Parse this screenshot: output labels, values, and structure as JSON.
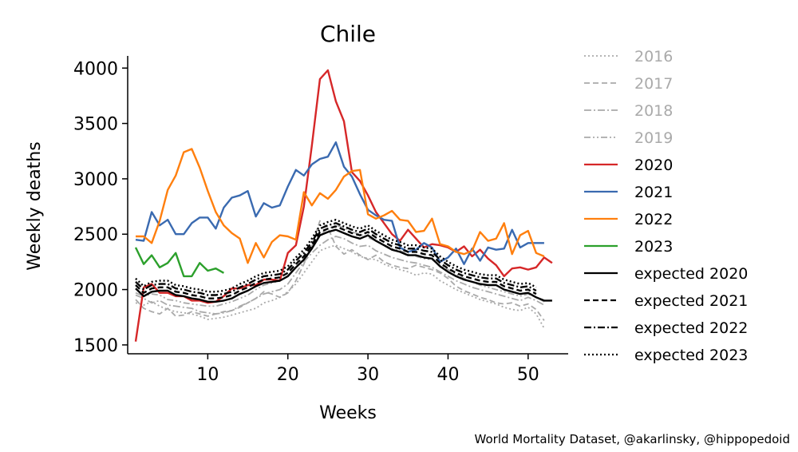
{
  "chart_data": {
    "type": "line",
    "title": "Chile",
    "xlabel": "Weeks",
    "ylabel": "Weekly deaths",
    "xlim": [
      0,
      55
    ],
    "ylim": [
      1420,
      4110
    ],
    "xticks": [
      10,
      20,
      30,
      40,
      50
    ],
    "yticks": [
      1500,
      2000,
      2500,
      3000,
      3500,
      4000
    ],
    "grid": false,
    "legend_position": "right",
    "credit": "World Mortality Dataset, @akarlinsky, @hippopedoid",
    "series": [
      {
        "name": "2016",
        "color": "#aaaaaa",
        "dash": "dotted",
        "x_start": 1,
        "values": [
          1880,
          1860,
          1890,
          1850,
          1820,
          1800,
          1790,
          1780,
          1760,
          1730,
          1740,
          1750,
          1770,
          1790,
          1810,
          1830,
          1880,
          1900,
          1930,
          1980,
          2050,
          2150,
          2250,
          2350,
          2380,
          2400,
          2370,
          2340,
          2300,
          2280,
          2270,
          2230,
          2200,
          2180,
          2160,
          2130,
          2150,
          2140,
          2080,
          2040,
          2000,
          1970,
          1940,
          1910,
          1890,
          1870,
          1840,
          1820,
          1810,
          1840,
          1780,
          1650
        ]
      },
      {
        "name": "2017",
        "color": "#aaaaaa",
        "dash": "dashed",
        "x_start": 1,
        "values": [
          1910,
          1830,
          1800,
          1780,
          1830,
          1760,
          1770,
          1800,
          1780,
          1760,
          1780,
          1800,
          1810,
          1840,
          1880,
          1920,
          1980,
          1960,
          1930,
          1970,
          2080,
          2230,
          2400,
          2620,
          2560,
          2390,
          2320,
          2360,
          2310,
          2270,
          2310,
          2250,
          2220,
          2200,
          2190,
          2220,
          2200,
          2180,
          2150,
          2100,
          2030,
          1990,
          1960,
          1930,
          1910,
          1880,
          1870,
          1880,
          1850,
          1870,
          1820,
          1720
        ]
      },
      {
        "name": "2018",
        "color": "#aaaaaa",
        "dash": "dashdot",
        "x_start": 1,
        "values": [
          1950,
          1920,
          1880,
          1900,
          1860,
          1850,
          1840,
          1830,
          1800,
          1790,
          1780,
          1790,
          1810,
          1850,
          1880,
          1920,
          1960,
          1980,
          2000,
          2050,
          2150,
          2250,
          2330,
          2400,
          2450,
          2480,
          2460,
          2420,
          2390,
          2400,
          2350,
          2320,
          2290,
          2270,
          2250,
          2240,
          2220,
          2200,
          2160,
          2120,
          2080,
          2050,
          2020,
          2000,
          1980,
          1960,
          1940,
          1920,
          1900,
          1930,
          1900,
          1860
        ]
      },
      {
        "name": "2019",
        "color": "#aaaaaa",
        "dash": "dashdotdot",
        "x_start": 1,
        "values": [
          1970,
          1940,
          1960,
          1950,
          1910,
          1900,
          1880,
          1870,
          1860,
          1850,
          1850,
          1870,
          1890,
          1920,
          1950,
          2000,
          2040,
          2060,
          2080,
          2120,
          2200,
          2300,
          2400,
          2500,
          2550,
          2580,
          2560,
          2520,
          2500,
          2470,
          2440,
          2400,
          2370,
          2350,
          2320,
          2300,
          2280,
          2270,
          2220,
          2180,
          2140,
          2100,
          2070,
          2040,
          2020,
          2000,
          1980,
          1960,
          1940,
          1960,
          1930,
          1890
        ]
      },
      {
        "name": "2020",
        "color": "#d62728",
        "dash": "solid",
        "x_start": 1,
        "values": [
          1530,
          2020,
          2050,
          1970,
          1970,
          1940,
          1940,
          1900,
          1900,
          1880,
          1890,
          1940,
          2010,
          2010,
          2040,
          2040,
          2090,
          2090,
          2080,
          2330,
          2400,
          2750,
          3300,
          3900,
          3980,
          3700,
          3520,
          3060,
          2980,
          2850,
          2700,
          2600,
          2500,
          2440,
          2540,
          2460,
          2380,
          2410,
          2400,
          2380,
          2340,
          2390,
          2300,
          2360,
          2280,
          2220,
          2120,
          2190,
          2200,
          2180,
          2200,
          2290,
          2240
        ]
      },
      {
        "name": "2021",
        "color": "#3a6ab0",
        "dash": "solid",
        "x_start": 1,
        "values": [
          2450,
          2440,
          2700,
          2580,
          2630,
          2500,
          2500,
          2600,
          2650,
          2650,
          2550,
          2740,
          2830,
          2850,
          2890,
          2660,
          2780,
          2740,
          2760,
          2930,
          3080,
          3030,
          3130,
          3180,
          3200,
          3330,
          3110,
          3020,
          2860,
          2720,
          2670,
          2630,
          2620,
          2380,
          2340,
          2360,
          2420,
          2380,
          2250,
          2290,
          2370,
          2230,
          2370,
          2260,
          2380,
          2360,
          2370,
          2540,
          2380,
          2420,
          2420,
          2420
        ]
      },
      {
        "name": "2022",
        "color": "#ff7f0e",
        "dash": "solid",
        "x_start": 1,
        "values": [
          2480,
          2480,
          2420,
          2620,
          2900,
          3030,
          3240,
          3270,
          3100,
          2890,
          2700,
          2580,
          2510,
          2460,
          2240,
          2420,
          2290,
          2430,
          2490,
          2480,
          2450,
          2880,
          2760,
          2870,
          2820,
          2900,
          3020,
          3070,
          3080,
          2680,
          2640,
          2670,
          2710,
          2630,
          2620,
          2520,
          2530,
          2640,
          2410,
          2390,
          2340,
          2320,
          2350,
          2520,
          2440,
          2460,
          2600,
          2320,
          2490,
          2530,
          2330,
          2300
        ]
      },
      {
        "name": "2023",
        "color": "#2ca02c",
        "dash": "solid",
        "x_start": 1,
        "values": [
          2380,
          2230,
          2310,
          2200,
          2240,
          2330,
          2120,
          2120,
          2240,
          2170,
          2190,
          2150
        ]
      },
      {
        "name": "expected 2020",
        "color": "#000000",
        "dash": "solid",
        "x_start": 1,
        "values": [
          2010,
          1940,
          1980,
          1990,
          1990,
          1950,
          1940,
          1920,
          1910,
          1890,
          1890,
          1900,
          1920,
          1960,
          1990,
          2030,
          2060,
          2070,
          2080,
          2120,
          2200,
          2270,
          2370,
          2490,
          2520,
          2540,
          2510,
          2480,
          2460,
          2490,
          2440,
          2400,
          2360,
          2340,
          2310,
          2310,
          2290,
          2280,
          2210,
          2160,
          2120,
          2090,
          2070,
          2050,
          2040,
          2040,
          2000,
          1980,
          1960,
          1970,
          1930,
          1900,
          1900
        ]
      },
      {
        "name": "expected 2021",
        "color": "#000000",
        "dash": "dashed",
        "x_start": 1,
        "values": [
          2040,
          1970,
          2010,
          2020,
          2020,
          1980,
          1970,
          1950,
          1940,
          1920,
          1920,
          1930,
          1950,
          1990,
          2020,
          2060,
          2090,
          2100,
          2110,
          2150,
          2230,
          2300,
          2400,
          2520,
          2550,
          2570,
          2540,
          2510,
          2490,
          2520,
          2470,
          2430,
          2390,
          2370,
          2340,
          2340,
          2320,
          2310,
          2240,
          2190,
          2150,
          2120,
          2100,
          2080,
          2070,
          2070,
          2030,
          2010,
          1990,
          2000,
          1960
        ]
      },
      {
        "name": "expected 2022",
        "color": "#000000",
        "dash": "dashdot",
        "x_start": 1,
        "values": [
          2070,
          2000,
          2040,
          2050,
          2050,
          2010,
          2000,
          1980,
          1970,
          1950,
          1950,
          1960,
          1980,
          2020,
          2050,
          2090,
          2120,
          2130,
          2140,
          2180,
          2260,
          2330,
          2430,
          2550,
          2580,
          2600,
          2570,
          2540,
          2520,
          2550,
          2500,
          2460,
          2420,
          2400,
          2370,
          2370,
          2350,
          2340,
          2270,
          2220,
          2180,
          2150,
          2130,
          2110,
          2100,
          2100,
          2060,
          2040,
          2020,
          2030,
          1990
        ]
      },
      {
        "name": "expected 2023",
        "color": "#000000",
        "dash": "dotted",
        "x_start": 1,
        "values": [
          2100,
          2030,
          2070,
          2080,
          2080,
          2040,
          2030,
          2010,
          2000,
          1980,
          1980,
          1990,
          2010,
          2050,
          2080,
          2120,
          2150,
          2160,
          2170,
          2210,
          2290,
          2360,
          2460,
          2580,
          2610,
          2630,
          2600,
          2570,
          2550,
          2580,
          2530,
          2490,
          2450,
          2430,
          2400,
          2400,
          2380,
          2370,
          2300,
          2250,
          2210,
          2180,
          2160,
          2140,
          2130,
          2130,
          2090,
          2070,
          2050,
          2060,
          2020
        ]
      }
    ]
  }
}
